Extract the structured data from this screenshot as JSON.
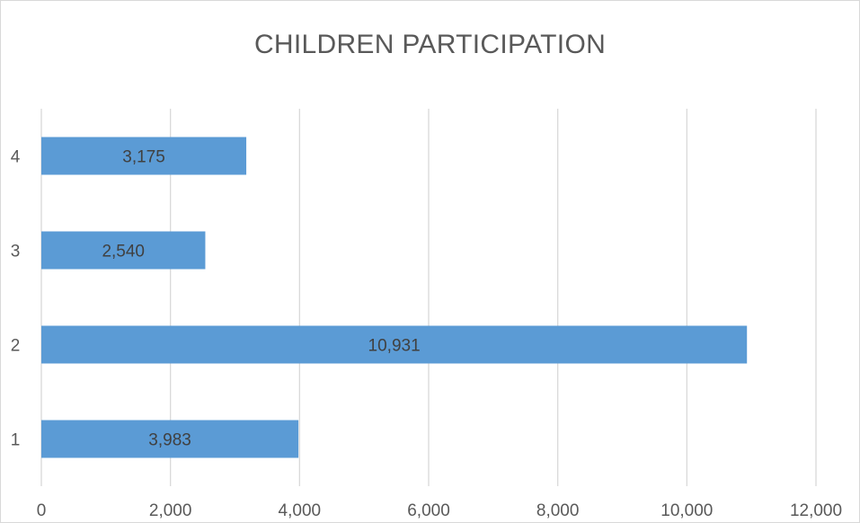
{
  "chart_data": {
    "type": "bar",
    "orientation": "horizontal",
    "title": "CHILDREN PARTICIPATION",
    "categories": [
      "1",
      "2",
      "3",
      "4"
    ],
    "values": [
      3983,
      10931,
      2540,
      3175
    ],
    "data_labels": [
      "3,983",
      "10,931",
      "2,540",
      "3,175"
    ],
    "xlim": [
      0,
      12000
    ],
    "x_ticks": [
      0,
      2000,
      4000,
      6000,
      8000,
      10000,
      12000
    ],
    "x_tick_labels": [
      "0",
      "2,000",
      "4,000",
      "6,000",
      "8,000",
      "10,000",
      "12,000"
    ],
    "grid": "vertical",
    "legend": "none",
    "bar_color": "#5b9bd5"
  }
}
